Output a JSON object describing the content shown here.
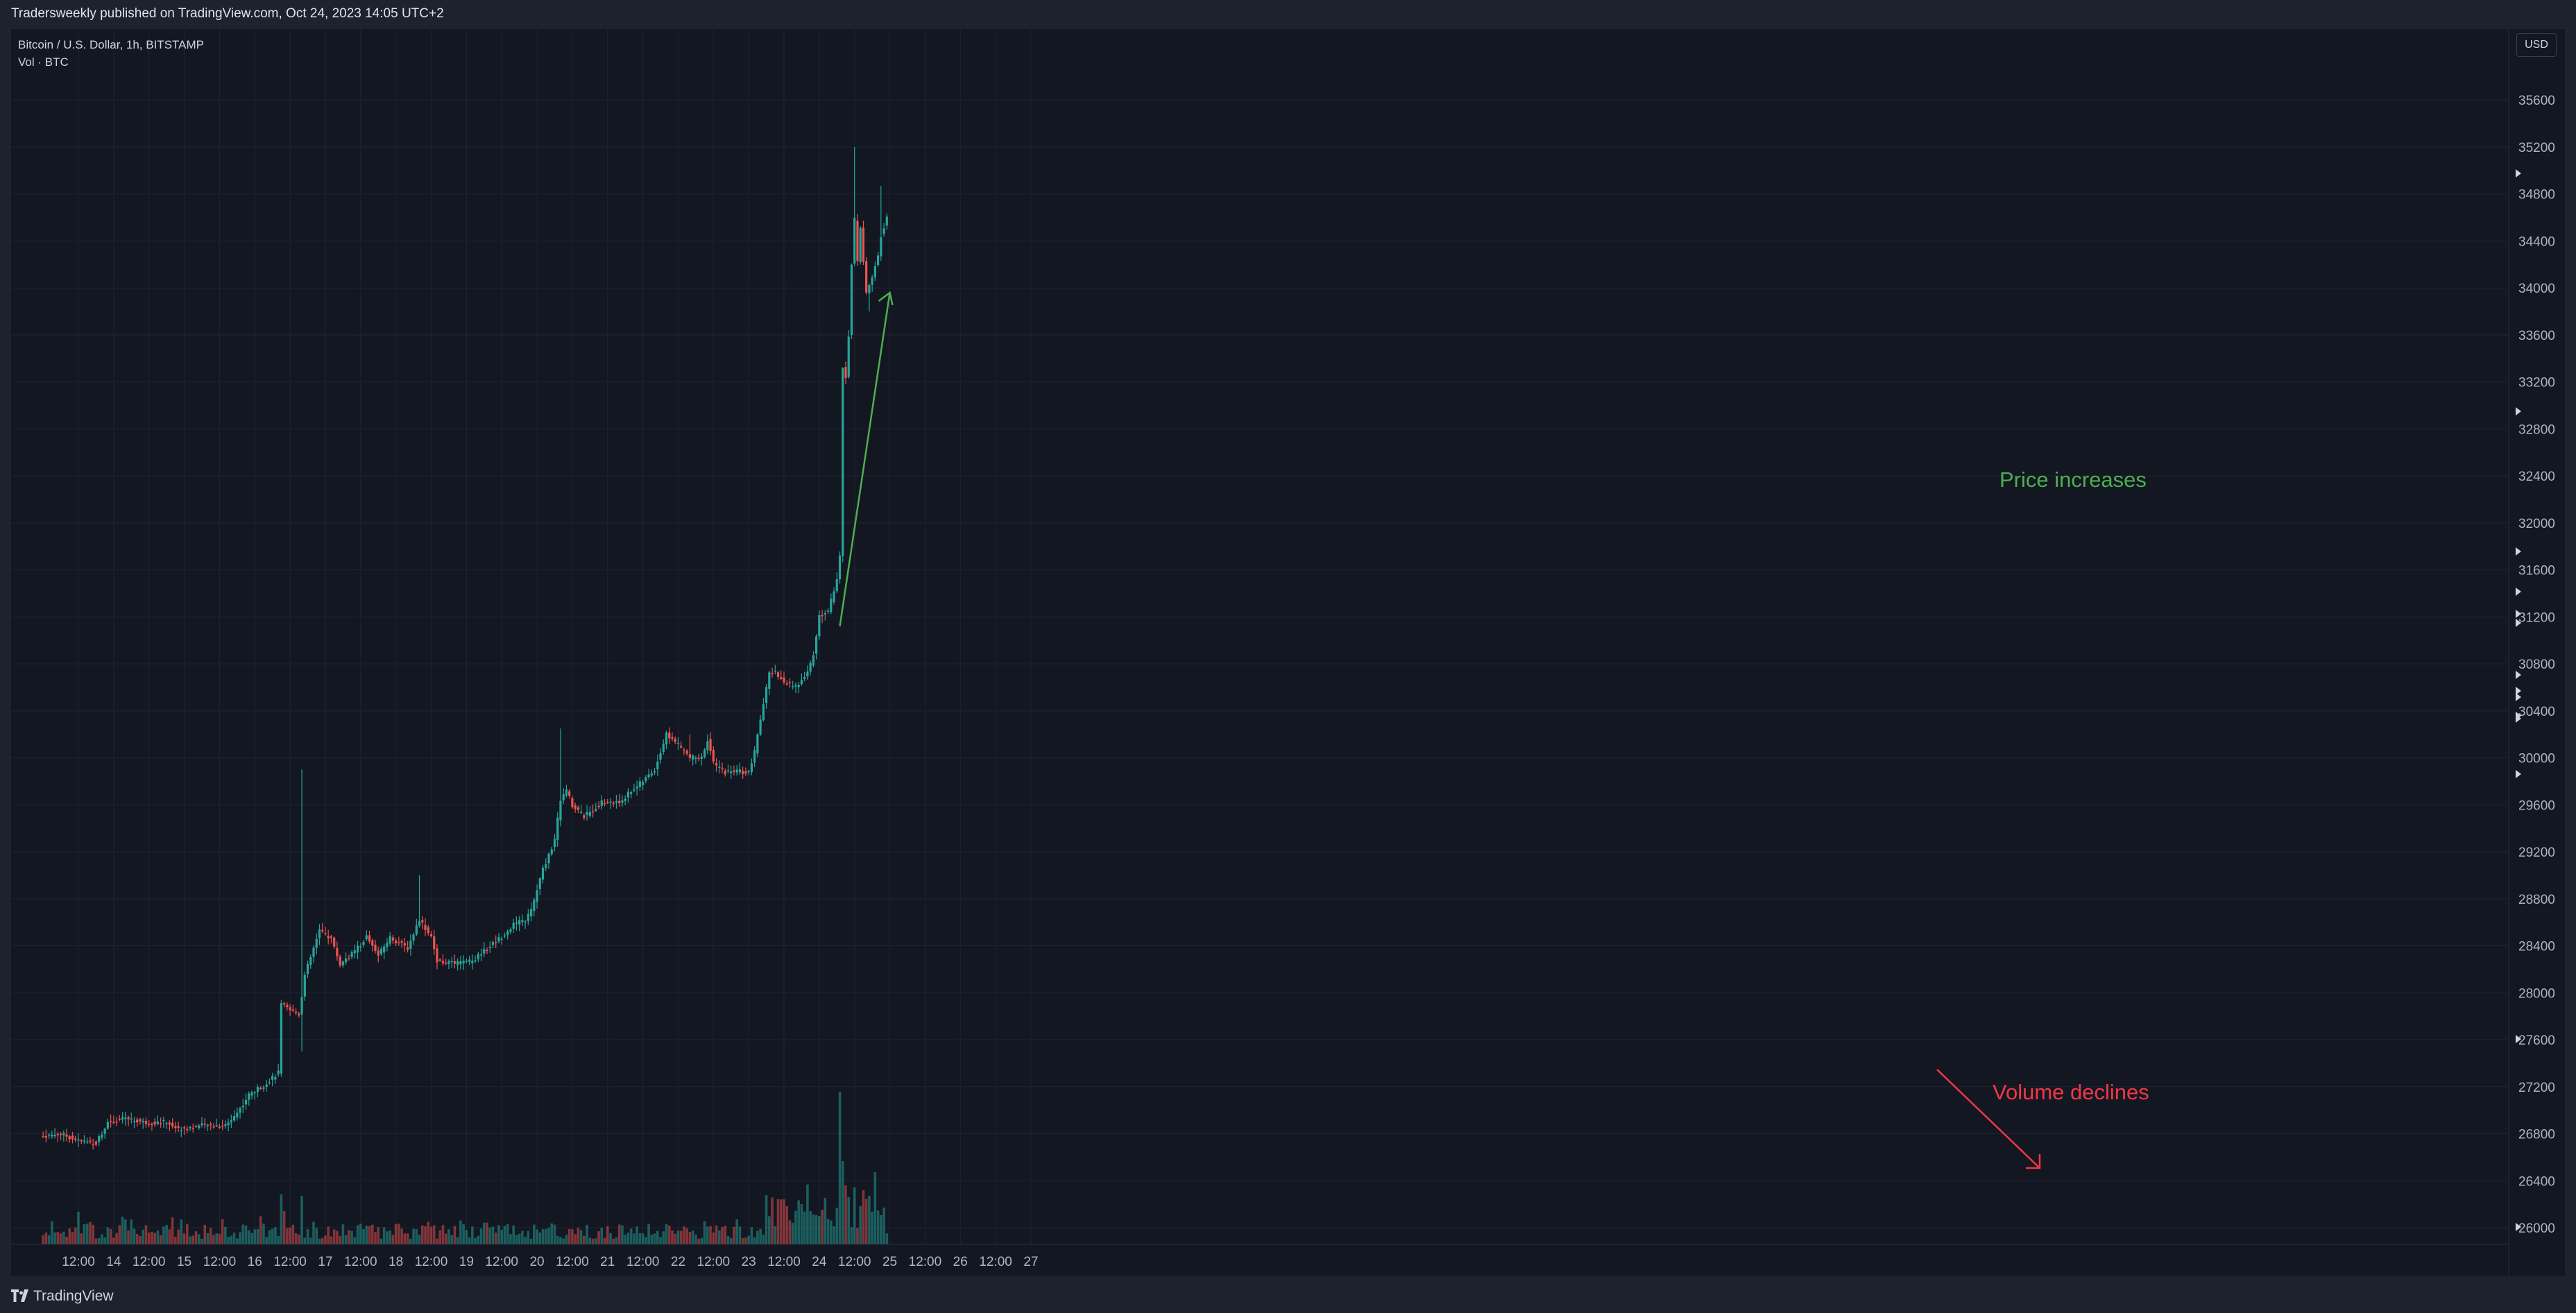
{
  "header": {
    "publisher": "Tradersweekly published on TradingView.com, Oct 24, 2023 14:05 UTC+2"
  },
  "legend": {
    "symbol": "Bitcoin / U.S. Dollar, 1h, BITSTAMP",
    "volume": "Vol · BTC"
  },
  "currency": "USD",
  "footer": {
    "brand": "TradingView"
  },
  "colors": {
    "up": "#26a69a",
    "down": "#ef5350",
    "background": "#131722",
    "grid": "#1f2430",
    "annotation_up": "#4caf50",
    "annotation_down": "#f23645"
  },
  "annotations": {
    "price": "Price increases",
    "volume": "Volume declines"
  },
  "chart_data": {
    "type": "candlestick",
    "interval": "1h",
    "ylim": [
      25800,
      35900
    ],
    "y_ticks": [
      26000,
      26400,
      26800,
      27200,
      27600,
      28000,
      28400,
      28800,
      29200,
      29600,
      30000,
      30400,
      30800,
      31200,
      31600,
      32000,
      32400,
      32800,
      33200,
      33600,
      34000,
      34400,
      34800,
      35200,
      35600
    ],
    "x_ticks": [
      "12:00",
      "14",
      "12:00",
      "15",
      "12:00",
      "16",
      "12:00",
      "17",
      "12:00",
      "18",
      "12:00",
      "19",
      "12:00",
      "20",
      "12:00",
      "21",
      "12:00",
      "22",
      "12:00",
      "23",
      "12:00",
      "24",
      "12:00",
      "25",
      "12:00",
      "26",
      "12:00",
      "27"
    ],
    "x_tick_hours": [
      12,
      24,
      36,
      48,
      60,
      72,
      84,
      96,
      108,
      120,
      132,
      144,
      156,
      168,
      180,
      192,
      204,
      216,
      228,
      240,
      252,
      264,
      276,
      288,
      300,
      312,
      324,
      336
    ],
    "start_hour": 0,
    "anchors": [
      [
        0,
        26780
      ],
      [
        6,
        26800
      ],
      [
        12,
        26740
      ],
      [
        18,
        26720
      ],
      [
        22,
        26900
      ],
      [
        28,
        26930
      ],
      [
        36,
        26890
      ],
      [
        42,
        26900
      ],
      [
        46,
        26840
      ],
      [
        54,
        26870
      ],
      [
        62,
        26870
      ],
      [
        66,
        26980
      ],
      [
        70,
        27130
      ],
      [
        76,
        27230
      ],
      [
        80,
        27320
      ],
      [
        81,
        27900
      ],
      [
        84,
        27850
      ],
      [
        87,
        27820
      ],
      [
        88,
        27980
      ],
      [
        89,
        28150
      ],
      [
        94,
        28530
      ],
      [
        98,
        28460
      ],
      [
        101,
        28240
      ],
      [
        106,
        28350
      ],
      [
        110,
        28480
      ],
      [
        114,
        28320
      ],
      [
        118,
        28470
      ],
      [
        124,
        28380
      ],
      [
        128,
        28630
      ],
      [
        132,
        28470
      ],
      [
        134,
        28270
      ],
      [
        140,
        28250
      ],
      [
        146,
        28270
      ],
      [
        152,
        28400
      ],
      [
        156,
        28480
      ],
      [
        160,
        28580
      ],
      [
        164,
        28620
      ],
      [
        166,
        28700
      ],
      [
        170,
        29050
      ],
      [
        174,
        29300
      ],
      [
        176,
        29650
      ],
      [
        178,
        29720
      ],
      [
        180,
        29600
      ],
      [
        184,
        29500
      ],
      [
        190,
        29620
      ],
      [
        196,
        29620
      ],
      [
        200,
        29720
      ],
      [
        204,
        29800
      ],
      [
        208,
        29900
      ],
      [
        212,
        30200
      ],
      [
        215,
        30140
      ],
      [
        220,
        30000
      ],
      [
        224,
        30000
      ],
      [
        226,
        30160
      ],
      [
        228,
        29950
      ],
      [
        232,
        29880
      ],
      [
        236,
        29890
      ],
      [
        240,
        29870
      ],
      [
        242,
        30050
      ],
      [
        245,
        30460
      ],
      [
        247,
        30710
      ],
      [
        249,
        30730
      ],
      [
        252,
        30640
      ],
      [
        256,
        30610
      ],
      [
        260,
        30720
      ],
      [
        262,
        30880
      ],
      [
        264,
        31210
      ],
      [
        267,
        31250
      ],
      [
        270,
        31520
      ],
      [
        271,
        31720
      ],
      [
        272,
        33320
      ],
      [
        273,
        33240
      ],
      [
        274,
        33600
      ],
      [
        275,
        34200
      ],
      [
        276,
        34580
      ],
      [
        277,
        34230
      ],
      [
        278,
        34500
      ],
      [
        280,
        33960
      ],
      [
        282,
        34100
      ],
      [
        284,
        34280
      ],
      [
        285,
        34450
      ],
      [
        287,
        34600
      ]
    ],
    "bursts": {
      "88": 2500,
      "82": 1200,
      "279": 2100,
      "271": 500,
      "272": 0
    },
    "spikes": {
      "88": 29900,
      "220": 30200,
      "272": 33100,
      "276": 35200,
      "285": 34870,
      "176": 30250,
      "128": 29000
    },
    "lows": {
      "88": 27500,
      "281": 33800
    },
    "volume_series": "Vol · BTC",
    "volume_note": "peak near hour 271 with declining bars afterwards"
  }
}
